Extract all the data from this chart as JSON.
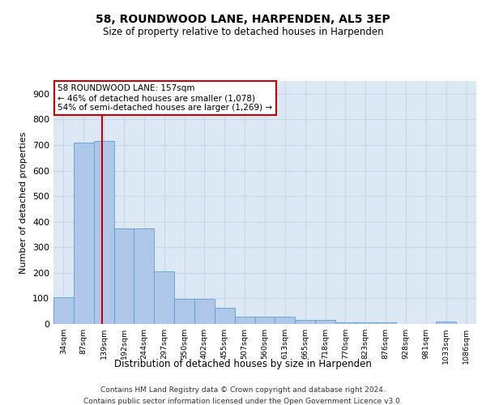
{
  "title1": "58, ROUNDWOOD LANE, HARPENDEN, AL5 3EP",
  "title2": "Size of property relative to detached houses in Harpenden",
  "xlabel": "Distribution of detached houses by size in Harpenden",
  "ylabel": "Number of detached properties",
  "bar_labels": [
    "34sqm",
    "87sqm",
    "139sqm",
    "192sqm",
    "244sqm",
    "297sqm",
    "350sqm",
    "402sqm",
    "455sqm",
    "507sqm",
    "560sqm",
    "613sqm",
    "665sqm",
    "718sqm",
    "770sqm",
    "823sqm",
    "876sqm",
    "928sqm",
    "981sqm",
    "1033sqm",
    "1086sqm"
  ],
  "bar_values": [
    103,
    710,
    715,
    375,
    375,
    207,
    98,
    98,
    63,
    30,
    30,
    30,
    17,
    17,
    7,
    7,
    5,
    0,
    0,
    10,
    0
  ],
  "bar_color": "#aec6e8",
  "bar_edge_color": "#5a9fd4",
  "annotation_line1": "58 ROUNDWOOD LANE: 157sqm",
  "annotation_line2": "← 46% of detached houses are smaller (1,078)",
  "annotation_line3": "54% of semi-detached houses are larger (1,269) →",
  "vline_color": "#cc0000",
  "vline_x_index": 2.0,
  "annotation_box_color": "#ffffff",
  "annotation_box_edge_color": "#cc0000",
  "ylim": [
    0,
    950
  ],
  "yticks": [
    0,
    100,
    200,
    300,
    400,
    500,
    600,
    700,
    800,
    900
  ],
  "grid_color": "#c8d8e8",
  "bg_color": "#dce8f4",
  "footer1": "Contains HM Land Registry data © Crown copyright and database right 2024.",
  "footer2": "Contains public sector information licensed under the Open Government Licence v3.0."
}
